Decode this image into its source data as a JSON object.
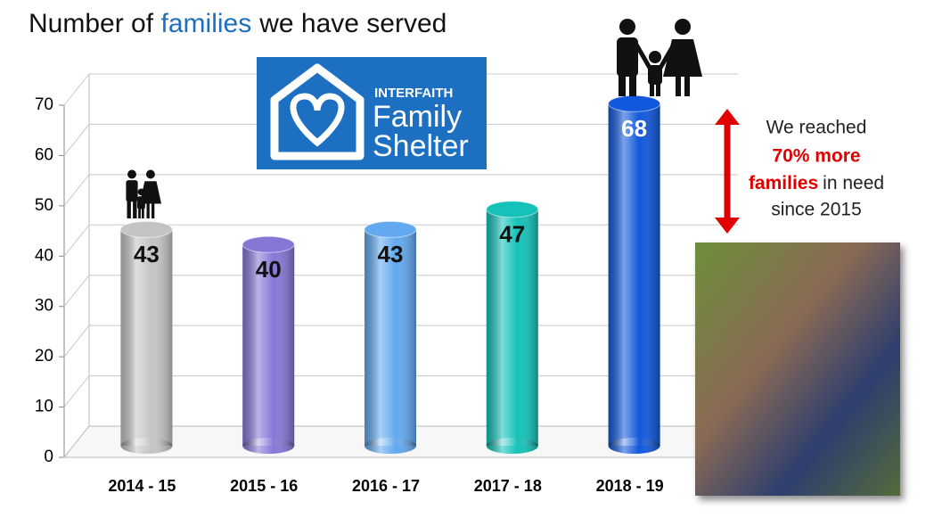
{
  "chart_data": {
    "type": "bar",
    "title": [
      "Number of",
      "families",
      "we have served"
    ],
    "categories": [
      "2014 - 15",
      "2015 - 16",
      "2016 - 17",
      "2017 - 18",
      "2018 - 19"
    ],
    "values": [
      43,
      40,
      43,
      47,
      68
    ],
    "colors": [
      "#c4c4c4",
      "#8577d6",
      "#62a9ef",
      "#14c2b9",
      "#1158dc"
    ],
    "ylim": [
      0,
      70
    ],
    "yticks": [
      0,
      10,
      20,
      30,
      40,
      50,
      60,
      70
    ],
    "grid": true,
    "logo": [
      "INTERFAITH",
      "Family",
      "Shelter"
    ],
    "annotation": [
      "We reached",
      "70% more",
      "families",
      "in need",
      "since 2015"
    ]
  }
}
